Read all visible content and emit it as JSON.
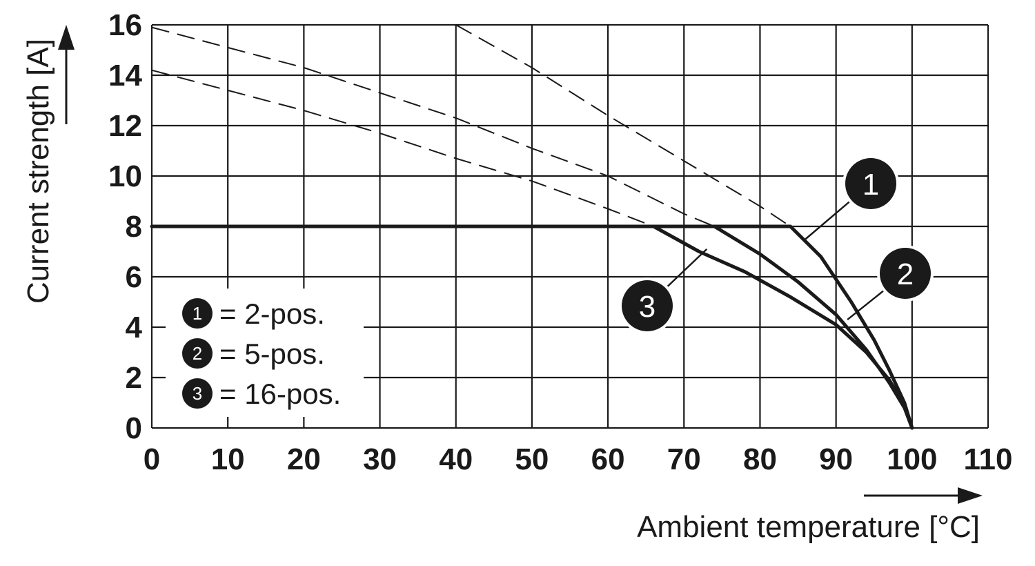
{
  "chart_data": {
    "type": "line",
    "xlabel": "Ambient temperature [°C]",
    "ylabel": "Current strength [A]",
    "xlim": [
      0,
      110
    ],
    "ylim": [
      0,
      16
    ],
    "x_ticks": [
      "0",
      "10",
      "20",
      "30",
      "40",
      "50",
      "60",
      "70",
      "80",
      "90",
      "100",
      "110"
    ],
    "y_ticks": [
      "0",
      "2",
      "4",
      "6",
      "8",
      "10",
      "12",
      "14",
      "16"
    ],
    "grid": true,
    "legend_position": "lower-left",
    "legend": [
      {
        "marker": "1",
        "text": "= 2-pos."
      },
      {
        "marker": "2",
        "text": "= 5-pos."
      },
      {
        "marker": "3",
        "text": "= 16-pos."
      }
    ],
    "series": [
      {
        "marker": "1",
        "style": "solid",
        "x": [
          0,
          84,
          88,
          92,
          95,
          97,
          99,
          100
        ],
        "y": [
          8,
          8,
          6.8,
          5.0,
          3.5,
          2.3,
          1.0,
          0
        ]
      },
      {
        "marker": "2",
        "style": "solid",
        "x": [
          74,
          80,
          85,
          90,
          94,
          97,
          99,
          100
        ],
        "y": [
          8,
          6.9,
          5.8,
          4.5,
          3.1,
          1.8,
          0.8,
          0
        ]
      },
      {
        "marker": "3",
        "style": "solid",
        "x": [
          66,
          72,
          78,
          84,
          90,
          94,
          97,
          99,
          100
        ],
        "y": [
          8,
          7.0,
          6.2,
          5.2,
          4.1,
          3.0,
          1.9,
          0.9,
          0
        ]
      }
    ],
    "dashed_extensions": [
      {
        "marker": "1",
        "style": "dashed",
        "x": [
          40,
          50,
          60,
          70,
          80,
          84
        ],
        "y": [
          16,
          14.3,
          12.4,
          10.6,
          8.8,
          8
        ]
      },
      {
        "marker": "2",
        "style": "dashed",
        "x": [
          0,
          10,
          20,
          30,
          40,
          50,
          60,
          70,
          74
        ],
        "y": [
          15.9,
          15.1,
          14.3,
          13.3,
          12.3,
          11.1,
          10.0,
          8.5,
          8
        ]
      },
      {
        "marker": "3",
        "style": "dashed",
        "x": [
          0,
          10,
          20,
          30,
          40,
          50,
          60,
          66
        ],
        "y": [
          14.2,
          13.4,
          12.6,
          11.7,
          10.7,
          9.8,
          8.7,
          8
        ]
      }
    ],
    "callouts": [
      {
        "marker": "1",
        "point": [
          86,
          7.5
        ]
      },
      {
        "marker": "2",
        "point": [
          91.5,
          4.3
        ]
      },
      {
        "marker": "3",
        "point": [
          73,
          7.1
        ]
      }
    ],
    "colors": {
      "line": "#1a1a1a",
      "grid": "#1a1a1a",
      "background": "#ffffff"
    }
  }
}
